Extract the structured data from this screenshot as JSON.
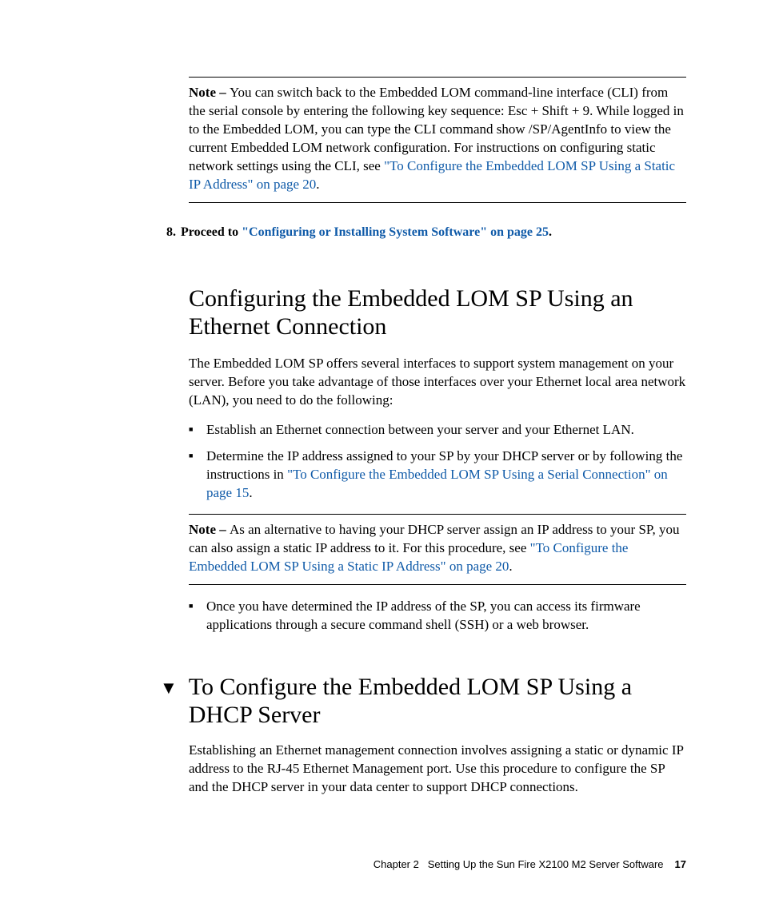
{
  "note1": {
    "label": "Note – ",
    "text_a": "You can switch back to the Embedded LOM command-line interface (CLI) from the serial console by entering the following key sequence: Esc + Shift + 9. While logged in to the Embedded LOM, you can type the CLI command show /SP/AgentInfo to view the current Embedded LOM network configuration. For instructions on configuring static network settings using the CLI, see ",
    "link": "\"To Configure the Embedded LOM SP Using a Static IP Address\" on page 20",
    "text_b": "."
  },
  "step8": {
    "num": "8.",
    "lead": "Proceed to ",
    "link": "\"Configuring or Installing System Software\" on page 25",
    "tail": "."
  },
  "section1": {
    "title": "Configuring the Embedded LOM SP Using an Ethernet Connection",
    "para": "The Embedded LOM SP offers several interfaces to support system management on your server. Before you take advantage of those interfaces over your Ethernet local area network (LAN), you need to do the following:",
    "bullets": {
      "b1": "Establish an Ethernet connection between your server and your Ethernet LAN.",
      "b2_a": "Determine the IP address assigned to your SP by your DHCP server or by following the instructions in ",
      "b2_link": "\"To Configure the Embedded LOM SP Using a Serial Connection\" on page 15",
      "b2_b": "."
    }
  },
  "note2": {
    "label": "Note – ",
    "text_a": "As an alternative to having your DHCP server assign an IP address to your SP, you can also assign a static IP address to it. For this procedure, see ",
    "link": "\"To Configure the Embedded LOM SP Using a Static IP Address\" on page 20",
    "text_b": "."
  },
  "bullet_after_note2": "Once you have determined the IP address of the SP, you can access its firmware applications through a secure command shell (SSH) or a web browser.",
  "procedure": {
    "marker": "▼",
    "title": "To Configure the Embedded LOM SP Using a DHCP Server",
    "para": "Establishing an Ethernet management connection involves assigning a static or dynamic IP address to the RJ-45 Ethernet Management port. Use this procedure to configure the SP and the DHCP server in your data center to support DHCP connections."
  },
  "footer": {
    "chapter": "Chapter 2",
    "title": "Setting Up the Sun Fire X2100 M2 Server Software",
    "page": "17"
  }
}
